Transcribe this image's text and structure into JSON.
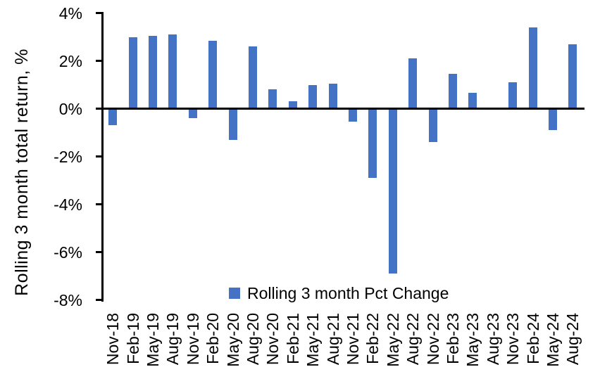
{
  "chart_data": {
    "type": "bar",
    "title": "",
    "xlabel": "",
    "ylabel": "Rolling 3 month total return, %",
    "ylim": [
      -8,
      4
    ],
    "ytick_labels": [
      "4%",
      "2%",
      "0%",
      "-2%",
      "-4%",
      "-6%",
      "-8%"
    ],
    "grid": false,
    "legend": {
      "label": "Rolling 3 month Pct Change",
      "swatch_color": "#4472C4"
    },
    "legend_position": "inside-bottom-center",
    "bar_color": "#4472C4",
    "axis_color": "#000000",
    "categories": [
      "Nov-18",
      "Feb-19",
      "May-19",
      "Aug-19",
      "Nov-19",
      "Feb-20",
      "May-20",
      "Aug-20",
      "Nov-20",
      "Feb-21",
      "May-21",
      "Aug-21",
      "Nov-21",
      "Feb-22",
      "May-22",
      "Aug-22",
      "Nov-22",
      "Feb-23",
      "May-23",
      "Aug-23",
      "Nov-23",
      "Feb-24",
      "May-24",
      "Aug-24"
    ],
    "values": [
      -0.7,
      3.0,
      3.05,
      3.1,
      -0.4,
      2.85,
      -1.3,
      2.6,
      0.8,
      0.3,
      1.0,
      1.05,
      -0.55,
      -2.9,
      -6.9,
      2.1,
      -1.4,
      1.45,
      0.65,
      0.0,
      1.1,
      3.4,
      -0.9,
      2.7
    ]
  }
}
